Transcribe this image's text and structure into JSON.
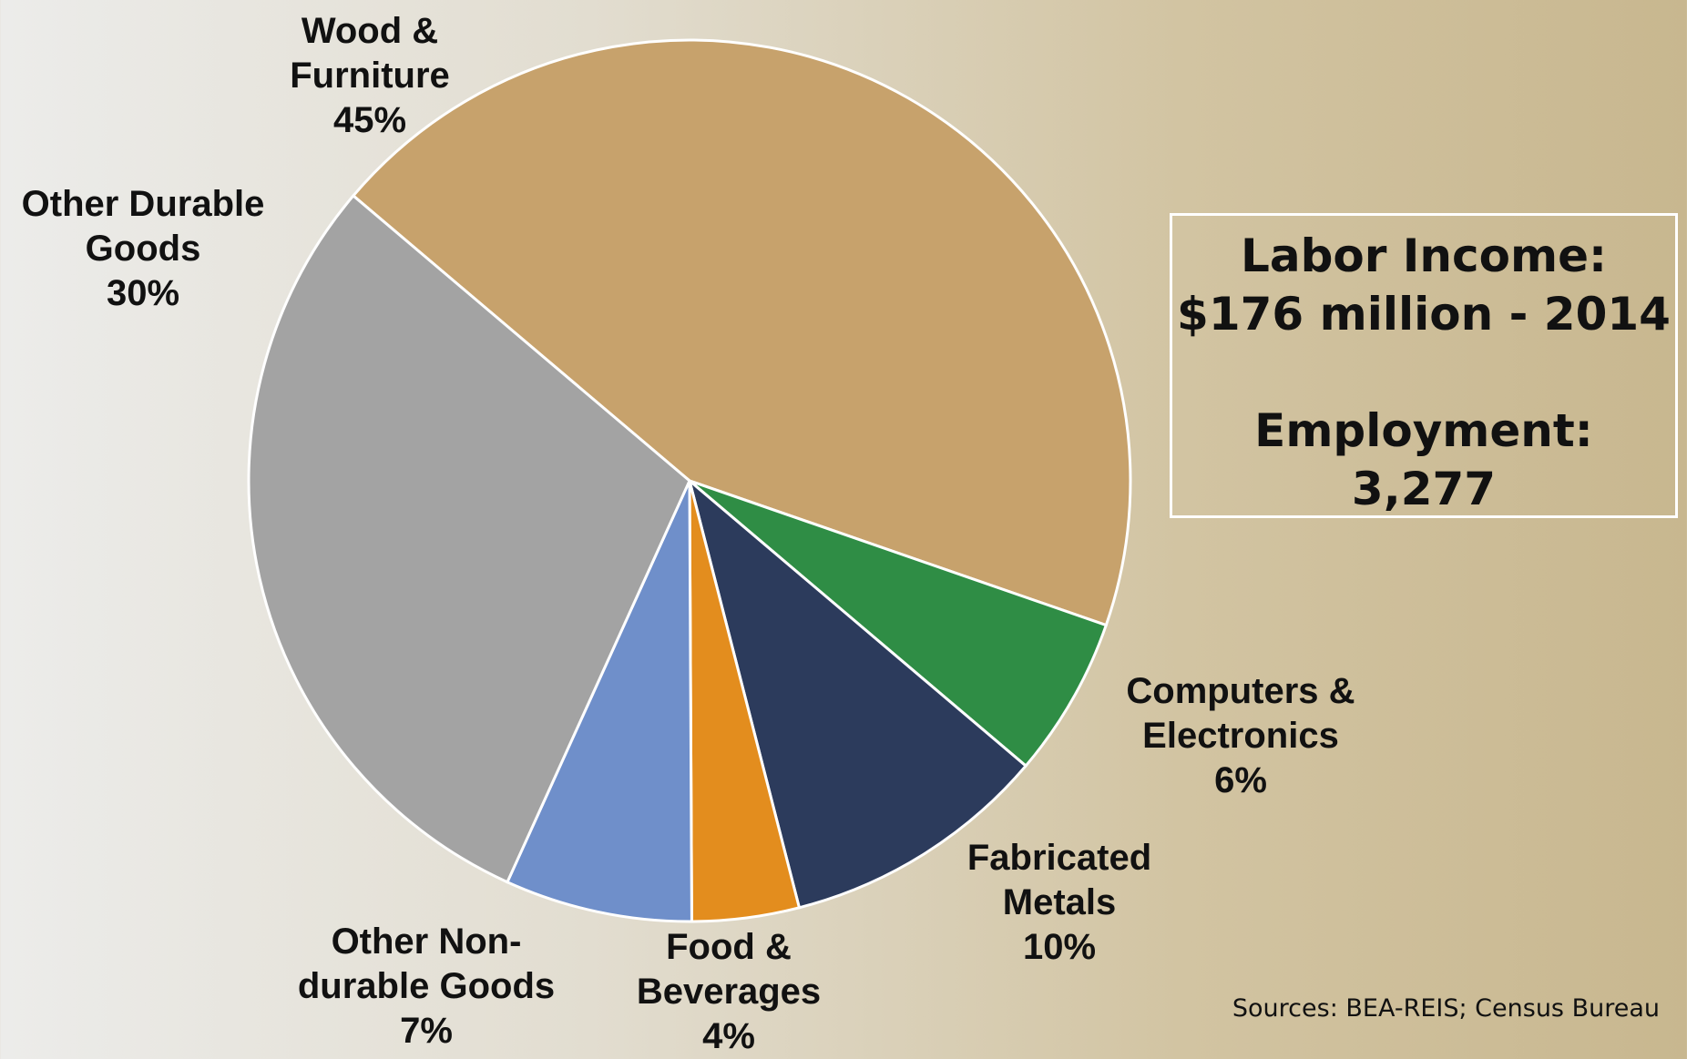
{
  "chart_data": {
    "type": "pie",
    "categories": [
      "Wood &\nFurniture",
      "Computers &\nElectronics",
      "Fabricated\nMetals",
      "Food &\nBeverages",
      "Other Non-\ndurable Goods",
      "Other Durable\nGoods"
    ],
    "values": [
      45,
      6,
      10,
      4,
      7,
      30
    ],
    "value_labels": [
      "45%",
      "6%",
      "10%",
      "4%",
      "7%",
      "30%"
    ],
    "colors": [
      "#c7a26c",
      "#2f8d45",
      "#2c3b5c",
      "#e38d1e",
      "#6f8fca",
      "#a3a3a3"
    ]
  },
  "info": {
    "labor_income_label": "Labor Income:",
    "labor_income_value": "$176 million - 2014",
    "employment_label": "Employment:",
    "employment_value": "3,277",
    "sources": "Sources: BEA-REIS; Census Bureau"
  }
}
